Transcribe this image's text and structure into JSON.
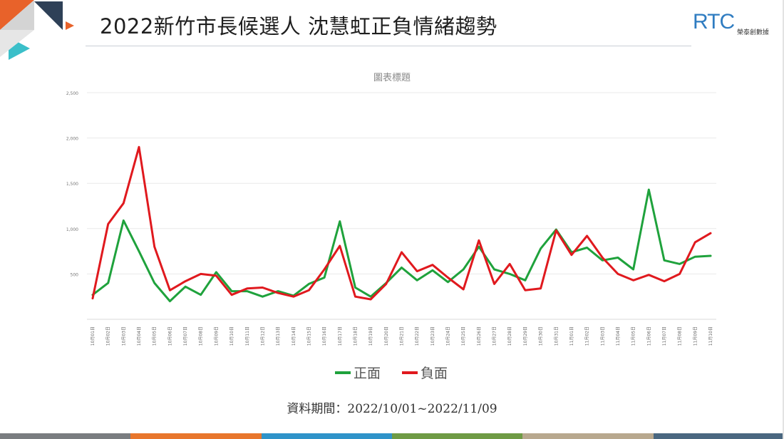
{
  "header": {
    "title": "2022新竹市長候選人 沈慧虹正負情緒趨勢",
    "logo": {
      "letters": "RTC",
      "subtitle": "榮泰創數據"
    }
  },
  "colors": {
    "positive": "#1fa23c",
    "negative": "#e0191e",
    "deco_orange": "#e8622a",
    "deco_navy": "#2e4057",
    "deco_teal": "#3bbfc9",
    "deco_gray": "#c7c7c7",
    "bottom_bar": [
      "#7a7d80",
      "#e8762c",
      "#2f93c9",
      "#6f9b45",
      "#b8a88e",
      "#4a6780"
    ]
  },
  "legend": {
    "positive_label": "正面",
    "negative_label": "負面"
  },
  "source_text": "資料期間：2022/10/01~2022/11/09",
  "chart_data": {
    "type": "line",
    "title": "圖表標題",
    "ylim": [
      0,
      2500
    ],
    "yticks": [
      "",
      "500",
      "1,000",
      "1,500",
      "2,000",
      "2,500"
    ],
    "ytick_values": [
      0,
      500,
      1000,
      1500,
      2000,
      2500
    ],
    "grid": true,
    "legend_position": "bottom",
    "categories": [
      "10月01日",
      "10月02日",
      "10月03日",
      "10月04日",
      "10月05日",
      "10月06日",
      "10月07日",
      "10月08日",
      "10月09日",
      "10月10日",
      "10月11日",
      "10月12日",
      "10月13日",
      "10月14日",
      "10月15日",
      "10月16日",
      "10月17日",
      "10月18日",
      "10月19日",
      "10月20日",
      "10月21日",
      "10月22日",
      "10月23日",
      "10月24日",
      "10月25日",
      "10月26日",
      "10月27日",
      "10月28日",
      "10月29日",
      "10月30日",
      "10月31日",
      "11月01日",
      "11月02日",
      "11月03日",
      "11月04日",
      "11月05日",
      "11月06日",
      "11月07日",
      "11月08日",
      "11月09日",
      "11月10日"
    ],
    "series": [
      {
        "name": "正面",
        "key": "positive",
        "values": [
          270,
          400,
          1090,
          750,
          400,
          200,
          360,
          270,
          520,
          310,
          310,
          250,
          310,
          260,
          390,
          460,
          1080,
          350,
          250,
          400,
          570,
          430,
          540,
          410,
          550,
          800,
          550,
          500,
          430,
          780,
          990,
          740,
          790,
          650,
          680,
          550,
          1430,
          650,
          610,
          690,
          700
        ]
      },
      {
        "name": "負面",
        "key": "negative",
        "values": [
          230,
          1050,
          1280,
          1900,
          800,
          320,
          420,
          500,
          480,
          270,
          340,
          350,
          290,
          250,
          320,
          550,
          810,
          250,
          220,
          390,
          740,
          530,
          600,
          460,
          330,
          870,
          390,
          610,
          320,
          340,
          980,
          710,
          920,
          680,
          500,
          430,
          490,
          420,
          500,
          850,
          950
        ]
      }
    ]
  }
}
